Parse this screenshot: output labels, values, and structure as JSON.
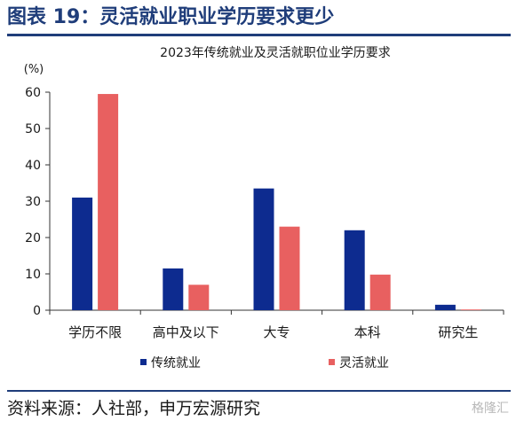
{
  "header": {
    "title": "图表 19：灵活就业职业学历要求更少"
  },
  "footer": {
    "source": "资料来源：人社部，申万宏源研究",
    "watermark": "格隆汇"
  },
  "chart_data": {
    "type": "bar",
    "title": "2023年传统就业及灵活就职位业学历要求",
    "unit_label": "(%)",
    "xlabel": "",
    "ylabel": "",
    "categories": [
      "学历不限",
      "高中及以下",
      "大专",
      "本科",
      "研究生"
    ],
    "series": [
      {
        "name": "传统就业",
        "values": [
          31,
          11.5,
          33.5,
          22,
          1.5
        ],
        "color": "#0d2b8f"
      },
      {
        "name": "灵活就业",
        "values": [
          59.5,
          7,
          23,
          9.8,
          0.2
        ],
        "color": "#e86060"
      }
    ],
    "ylim": [
      0,
      60
    ],
    "yticks": [
      0,
      10,
      20,
      30,
      40,
      50,
      60
    ],
    "grid": false,
    "legend_position": "bottom"
  }
}
